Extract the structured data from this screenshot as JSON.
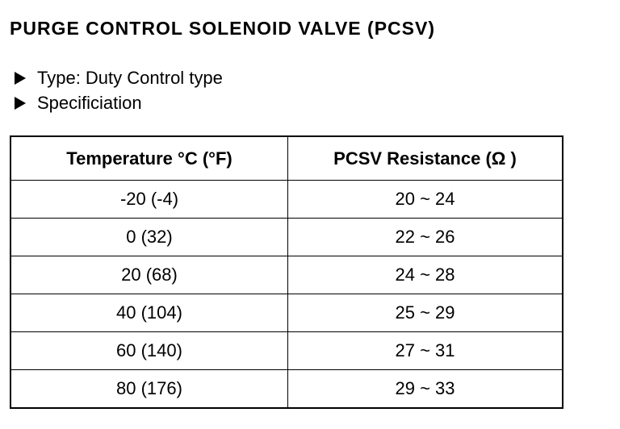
{
  "header": {
    "title": "PURGE CONTROL SOLENOID VALVE (PCSV)"
  },
  "bullets": [
    "Type: Duty Control type",
    "Specificiation"
  ],
  "table": {
    "columns": [
      "Temperature °C (°F)",
      "PCSV Resistance (Ω )"
    ],
    "rows": [
      [
        "-20 (-4)",
        "20 ~ 24"
      ],
      [
        "0 (32)",
        "22 ~ 26"
      ],
      [
        "20 (68)",
        "24 ~ 28"
      ],
      [
        "40 (104)",
        "25 ~ 29"
      ],
      [
        "60 (140)",
        "27 ~ 31"
      ],
      [
        "80 (176)",
        "29 ~ 33"
      ]
    ]
  }
}
